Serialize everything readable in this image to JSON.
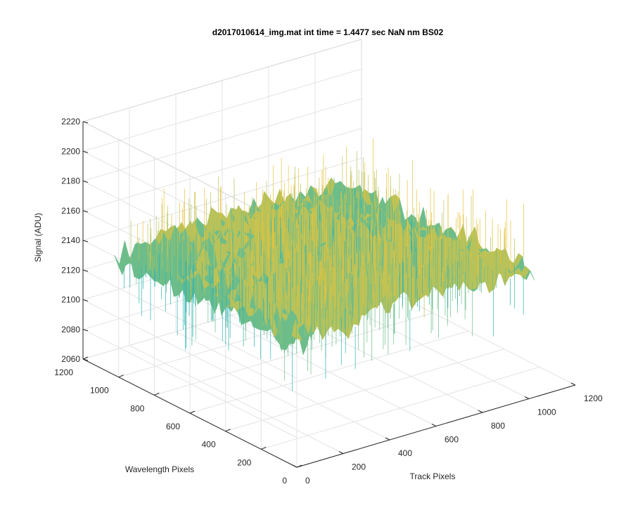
{
  "chart_data": {
    "type": "surface",
    "title": "d2017010614_img.mat int time = 1.4477 sec  NaN nm BS02",
    "xlabel": "Track Pixels",
    "ylabel": "Wavelength Pixels",
    "zlabel": "Signal (ADU)",
    "xlim": [
      0,
      1200
    ],
    "ylim": [
      0,
      1200
    ],
    "zlim": [
      2060,
      2220
    ],
    "x_ticks": [
      "0",
      "200",
      "400",
      "600",
      "800",
      "1000",
      "1200"
    ],
    "y_ticks": [
      "0",
      "200",
      "400",
      "600",
      "800",
      "1000",
      "1200"
    ],
    "z_ticks": [
      "2060",
      "2080",
      "2100",
      "2120",
      "2140",
      "2160",
      "2180",
      "2200",
      "2220"
    ],
    "data_extent": {
      "x": [
        0,
        1024
      ],
      "y": [
        0,
        1024
      ]
    },
    "surface_mean": 2140,
    "surface_range": [
      2070,
      2200
    ],
    "grid": true,
    "colormap": [
      "#0072bd",
      "#1a9cc8",
      "#2fb3b2",
      "#6dbd8a",
      "#b8c25a",
      "#e8c23a",
      "#f4d43a"
    ]
  }
}
